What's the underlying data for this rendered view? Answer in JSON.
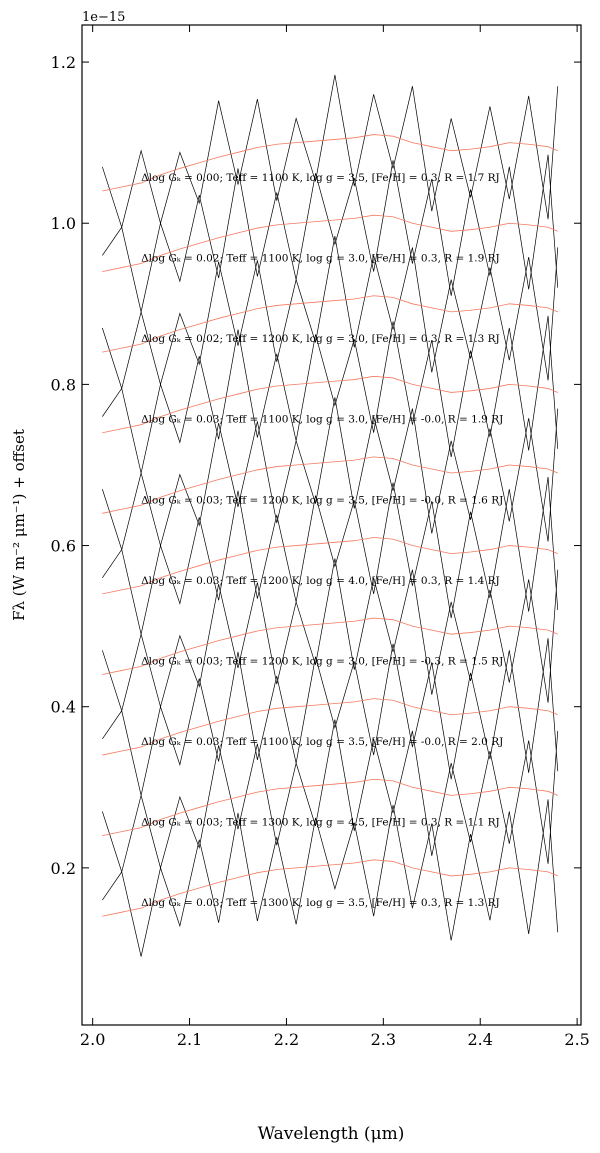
{
  "chart_data": {
    "type": "line",
    "offset_text": "1e−15",
    "xlabel": "Wavelength (μm)",
    "ylabel": "Fλ (W m⁻² μm⁻¹) + offset",
    "xlim": [
      1.989,
      2.504
    ],
    "ylim": [
      0.005,
      1.246
    ],
    "xticks": [
      {
        "value": 2.0,
        "label": "2.0"
      },
      2.1,
      2.2,
      2.3,
      2.4,
      2.5
    ],
    "yticks": [
      0.2,
      0.4,
      0.6,
      0.8,
      {
        "value": 1.0,
        "label": "1.0"
      },
      1.2
    ],
    "x": [
      2.01,
      2.03,
      2.05,
      2.07,
      2.09,
      2.11,
      2.13,
      2.15,
      2.17,
      2.19,
      2.21,
      2.23,
      2.25,
      2.27,
      2.29,
      2.31,
      2.33,
      2.35,
      2.37,
      2.39,
      2.41,
      2.43,
      2.45,
      2.47,
      2.48
    ],
    "series": [
      {
        "color": "#000000",
        "values": [
          1.07,
          0.995,
          1.09,
          1.0,
          1.088,
          1.025,
          1.152,
          1.048,
          1.154,
          1.028,
          1.13,
          1.052,
          1.184,
          1.046,
          1.16,
          1.068,
          1.17,
          1.015,
          1.13,
          1.032,
          1.145,
          1.03,
          1.158,
          1.005,
          1.17
        ]
      },
      {
        "color": "#f4795f",
        "values": [
          1.04,
          1.045,
          1.05,
          1.06,
          1.068,
          1.075,
          1.082,
          1.088,
          1.094,
          1.098,
          1.1,
          1.102,
          1.104,
          1.106,
          1.11,
          1.108,
          1.1,
          1.095,
          1.09,
          1.092,
          1.095,
          1.1,
          1.098,
          1.095,
          1.09
        ]
      },
      {
        "color": "#000000",
        "values": [
          0.96,
          0.995,
          0.89,
          1.0,
          0.928,
          1.035,
          0.932,
          1.068,
          0.934,
          1.038,
          0.93,
          1.062,
          0.974,
          1.056,
          0.94,
          1.078,
          0.95,
          1.055,
          0.91,
          1.042,
          0.935,
          1.07,
          0.918,
          1.085,
          0.92
        ]
      },
      {
        "color": "#f4795f",
        "values": [
          0.94,
          0.945,
          0.95,
          0.96,
          0.968,
          0.975,
          0.982,
          0.988,
          0.994,
          0.998,
          1.0,
          1.002,
          1.004,
          1.006,
          1.01,
          1.008,
          1.0,
          0.995,
          0.99,
          0.992,
          0.995,
          1.0,
          0.998,
          0.995,
          0.99
        ]
      },
      {
        "color": "#000000",
        "values": [
          0.87,
          0.795,
          0.89,
          0.8,
          0.888,
          0.825,
          0.952,
          0.848,
          0.954,
          0.828,
          0.93,
          0.852,
          0.984,
          0.846,
          0.96,
          0.868,
          0.97,
          0.815,
          0.93,
          0.832,
          0.945,
          0.83,
          0.958,
          0.805,
          0.97
        ]
      },
      {
        "color": "#f4795f",
        "values": [
          0.84,
          0.845,
          0.85,
          0.86,
          0.868,
          0.875,
          0.882,
          0.888,
          0.894,
          0.898,
          0.9,
          0.902,
          0.904,
          0.906,
          0.91,
          0.908,
          0.9,
          0.895,
          0.89,
          0.892,
          0.895,
          0.9,
          0.898,
          0.895,
          0.89
        ]
      },
      {
        "color": "#000000",
        "values": [
          0.76,
          0.795,
          0.69,
          0.8,
          0.728,
          0.835,
          0.732,
          0.868,
          0.734,
          0.838,
          0.73,
          0.862,
          0.774,
          0.856,
          0.74,
          0.878,
          0.75,
          0.855,
          0.71,
          0.842,
          0.735,
          0.87,
          0.718,
          0.885,
          0.72
        ]
      },
      {
        "color": "#f4795f",
        "values": [
          0.74,
          0.745,
          0.75,
          0.76,
          0.768,
          0.775,
          0.782,
          0.788,
          0.794,
          0.798,
          0.8,
          0.802,
          0.804,
          0.806,
          0.81,
          0.808,
          0.8,
          0.795,
          0.79,
          0.792,
          0.795,
          0.8,
          0.798,
          0.795,
          0.79
        ]
      },
      {
        "color": "#000000",
        "values": [
          0.67,
          0.595,
          0.69,
          0.6,
          0.688,
          0.625,
          0.752,
          0.648,
          0.754,
          0.628,
          0.73,
          0.652,
          0.784,
          0.646,
          0.76,
          0.668,
          0.77,
          0.615,
          0.73,
          0.632,
          0.745,
          0.63,
          0.758,
          0.605,
          0.77
        ]
      },
      {
        "color": "#f4795f",
        "values": [
          0.64,
          0.645,
          0.65,
          0.66,
          0.668,
          0.675,
          0.682,
          0.688,
          0.694,
          0.698,
          0.7,
          0.702,
          0.704,
          0.706,
          0.71,
          0.708,
          0.7,
          0.695,
          0.69,
          0.692,
          0.695,
          0.7,
          0.698,
          0.695,
          0.69
        ]
      },
      {
        "color": "#000000",
        "values": [
          0.56,
          0.595,
          0.49,
          0.6,
          0.528,
          0.635,
          0.532,
          0.668,
          0.534,
          0.638,
          0.53,
          0.662,
          0.574,
          0.656,
          0.54,
          0.678,
          0.55,
          0.655,
          0.51,
          0.642,
          0.535,
          0.67,
          0.518,
          0.685,
          0.52
        ]
      },
      {
        "color": "#f4795f",
        "values": [
          0.54,
          0.545,
          0.55,
          0.56,
          0.568,
          0.575,
          0.582,
          0.588,
          0.594,
          0.598,
          0.6,
          0.602,
          0.604,
          0.606,
          0.61,
          0.608,
          0.6,
          0.595,
          0.59,
          0.592,
          0.595,
          0.6,
          0.598,
          0.595,
          0.59
        ]
      },
      {
        "color": "#000000",
        "values": [
          0.47,
          0.395,
          0.49,
          0.4,
          0.488,
          0.425,
          0.552,
          0.448,
          0.554,
          0.428,
          0.53,
          0.452,
          0.584,
          0.446,
          0.56,
          0.468,
          0.57,
          0.415,
          0.53,
          0.432,
          0.545,
          0.43,
          0.558,
          0.405,
          0.57
        ]
      },
      {
        "color": "#f4795f",
        "values": [
          0.44,
          0.445,
          0.45,
          0.46,
          0.468,
          0.475,
          0.482,
          0.488,
          0.494,
          0.498,
          0.5,
          0.502,
          0.504,
          0.506,
          0.51,
          0.508,
          0.5,
          0.495,
          0.49,
          0.492,
          0.495,
          0.5,
          0.498,
          0.495,
          0.49
        ]
      },
      {
        "color": "#000000",
        "values": [
          0.36,
          0.395,
          0.29,
          0.4,
          0.328,
          0.435,
          0.332,
          0.468,
          0.334,
          0.438,
          0.33,
          0.462,
          0.374,
          0.456,
          0.34,
          0.478,
          0.35,
          0.455,
          0.31,
          0.442,
          0.335,
          0.47,
          0.318,
          0.485,
          0.32
        ]
      },
      {
        "color": "#f4795f",
        "values": [
          0.34,
          0.345,
          0.35,
          0.36,
          0.368,
          0.375,
          0.382,
          0.388,
          0.394,
          0.398,
          0.4,
          0.402,
          0.404,
          0.406,
          0.41,
          0.408,
          0.4,
          0.395,
          0.39,
          0.392,
          0.395,
          0.4,
          0.398,
          0.395,
          0.39
        ]
      },
      {
        "color": "#000000",
        "values": [
          0.27,
          0.195,
          0.29,
          0.2,
          0.288,
          0.225,
          0.352,
          0.248,
          0.354,
          0.228,
          0.33,
          0.252,
          0.384,
          0.246,
          0.36,
          0.268,
          0.37,
          0.215,
          0.33,
          0.232,
          0.345,
          0.23,
          0.358,
          0.205,
          0.37
        ]
      },
      {
        "color": "#f4795f",
        "values": [
          0.24,
          0.245,
          0.25,
          0.26,
          0.268,
          0.275,
          0.282,
          0.288,
          0.294,
          0.298,
          0.3,
          0.302,
          0.304,
          0.306,
          0.31,
          0.308,
          0.3,
          0.295,
          0.29,
          0.292,
          0.295,
          0.3,
          0.298,
          0.295,
          0.29
        ]
      },
      {
        "color": "#000000",
        "values": [
          0.16,
          0.195,
          0.09,
          0.2,
          0.128,
          0.235,
          0.132,
          0.268,
          0.134,
          0.238,
          0.13,
          0.262,
          0.174,
          0.256,
          0.14,
          0.278,
          0.15,
          0.255,
          0.11,
          0.242,
          0.135,
          0.27,
          0.118,
          0.285,
          0.12
        ]
      },
      {
        "color": "#f4795f",
        "values": [
          0.14,
          0.145,
          0.15,
          0.16,
          0.168,
          0.175,
          0.182,
          0.188,
          0.194,
          0.198,
          0.2,
          0.202,
          0.204,
          0.206,
          0.21,
          0.208,
          0.2,
          0.195,
          0.19,
          0.192,
          0.195,
          0.2,
          0.198,
          0.195,
          0.19
        ]
      }
    ],
    "annotations": [
      "Δlog Gₖ = 0.00; Teff = 1100 K, log g = 3.5, [Fe/H] = 0.3, R = 1.7 RJ",
      "Δlog Gₖ = 0.02; Teff = 1100 K, log g = 3.0, [Fe/H] = 0.3, R = 1.9 RJ",
      "Δlog Gₖ = 0.02; Teff = 1200 K, log g = 3.0, [Fe/H] = 0.3, R = 1.3 RJ",
      "Δlog Gₖ = 0.03; Teff = 1100 K, log g = 3.0, [Fe/H] = -0.0, R = 1.9 RJ",
      "Δlog Gₖ = 0.03; Teff = 1200 K, log g = 3.5, [Fe/H] = -0.0, R = 1.6 RJ",
      "Δlog Gₖ = 0.03; Teff = 1200 K, log g = 4.0, [Fe/H] = 0.3, R = 1.4 RJ",
      "Δlog Gₖ = 0.03; Teff = 1200 K, log g = 3.0, [Fe/H] = -0.3, R = 1.5 RJ",
      "Δlog Gₖ = 0.03; Teff = 1100 K, log g = 3.5, [Fe/H] = -0.0, R = 2.0 RJ",
      "Δlog Gₖ = 0.03; Teff = 1300 K, log g = 4.5, [Fe/H] = 0.3, R = 1.1 RJ",
      "Δlog Gₖ = 0.03; Teff = 1300 K, log g = 3.5, [Fe/H] = 0.3, R = 1.3 RJ"
    ]
  }
}
